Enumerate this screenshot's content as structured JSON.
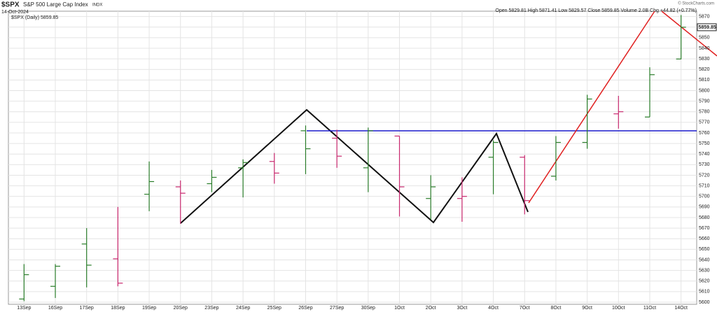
{
  "chart_data": {
    "type": "ohlc",
    "title": "$SPX",
    "subtitle": "S&P 500 Large Cap Index",
    "exchange": "INDX",
    "date": "14-Oct-2024",
    "quote": "Open 5829.81 High 5871.41 Low 5829.57 Close 5859.85 Volume 2.0B Chg +44.82 (+0.77%)",
    "credit": "© StockCharts.com",
    "legend": "$SPX (Daily) 5859.85",
    "last_value": 5859.85,
    "categories": [
      "13Sep",
      "16Sep",
      "17Sep",
      "18Sep",
      "19Sep",
      "20Sep",
      "23Sep",
      "24Sep",
      "25Sep",
      "26Sep",
      "27Sep",
      "30Sep",
      "1Oct",
      "2Oct",
      "3Oct",
      "4Oct",
      "7Oct",
      "8Oct",
      "9Oct",
      "10Oct",
      "11Oct",
      "14Oct"
    ],
    "series": [
      {
        "open": [
          5603,
          5615,
          5655,
          5641,
          5702,
          5709,
          5712,
          5727,
          5733,
          5762,
          5755,
          5727,
          5757,
          5698,
          5698,
          5737,
          5737,
          5719,
          5751,
          5778,
          5775,
          5829.81
        ],
        "high": [
          5636,
          5636,
          5670,
          5690,
          5733,
          5715,
          5725,
          5735,
          5741,
          5767,
          5763,
          5765,
          5757,
          5720,
          5718,
          5753,
          5739,
          5757,
          5796,
          5795,
          5822,
          5871.41
        ],
        "low": [
          5601,
          5604,
          5614,
          5615,
          5686,
          5674,
          5704,
          5699,
          5712,
          5721,
          5727,
          5704,
          5681,
          5678,
          5676,
          5702,
          5683,
          5715,
          5745,
          5764,
          5775,
          5829.57
        ],
        "close": [
          5626,
          5634,
          5635,
          5618,
          5714,
          5703,
          5718,
          5732,
          5722,
          5745,
          5738,
          5762,
          5709,
          5709,
          5700,
          5751,
          5696,
          5751,
          5792,
          5780,
          5815,
          5859.85
        ],
        "colors": [
          "#2a7d2a",
          "#2a7d2a",
          "#2a7d2a",
          "#c8286e",
          "#2a7d2a",
          "#c8286e",
          "#2a7d2a",
          "#2a7d2a",
          "#c8286e",
          "#2a7d2a",
          "#c8286e",
          "#2a7d2a",
          "#c8286e",
          "#2a7d2a",
          "#c8286e",
          "#2a7d2a",
          "#c8286e",
          "#2a7d2a",
          "#2a7d2a",
          "#c8286e",
          "#2a7d2a",
          "#2a7d2a"
        ]
      }
    ],
    "ylim": [
      5598,
      5875
    ],
    "yticks": [
      5600,
      5610,
      5620,
      5630,
      5640,
      5650,
      5660,
      5670,
      5680,
      5690,
      5700,
      5710,
      5720,
      5730,
      5740,
      5750,
      5760,
      5770,
      5780,
      5790,
      5800,
      5810,
      5820,
      5830,
      5840,
      5850,
      5860,
      5870
    ],
    "grid": true
  }
}
